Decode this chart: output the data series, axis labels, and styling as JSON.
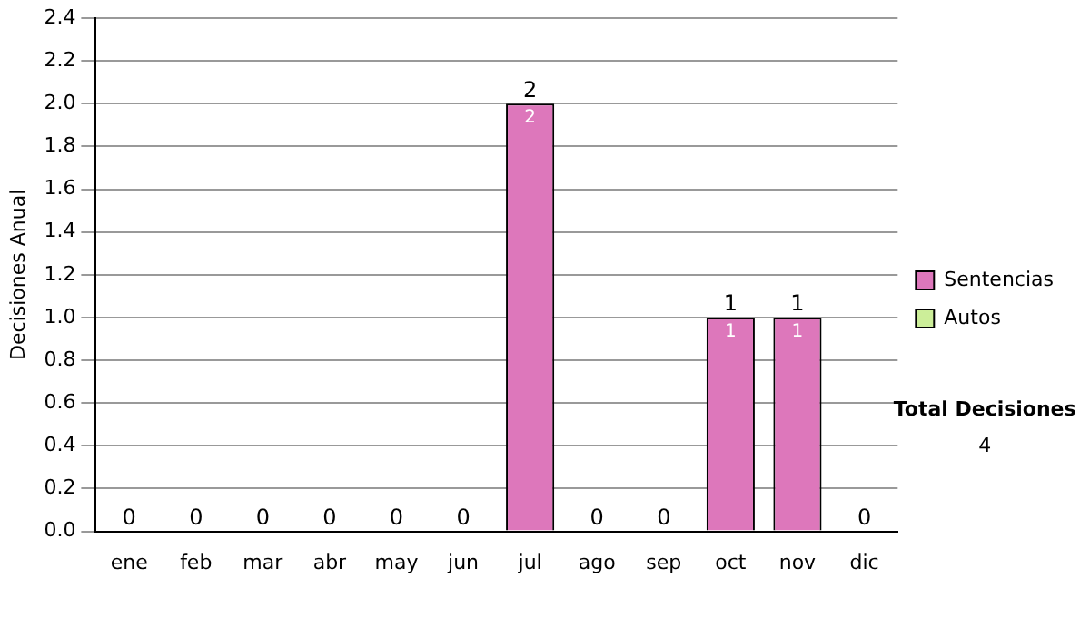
{
  "chart_data": {
    "type": "bar",
    "stacked": true,
    "ylabel": "Decisiones Anual",
    "categories": [
      "ene",
      "feb",
      "mar",
      "abr",
      "may",
      "jun",
      "jul",
      "ago",
      "sep",
      "oct",
      "nov",
      "dic"
    ],
    "series": [
      {
        "name": "Sentencias",
        "color": "#dd77bb",
        "values": [
          0,
          0,
          0,
          0,
          0,
          0,
          2,
          0,
          0,
          1,
          1,
          0
        ],
        "value_labels": [
          null,
          null,
          null,
          null,
          null,
          null,
          "2",
          null,
          null,
          "1",
          "1",
          null
        ]
      },
      {
        "name": "Autos",
        "color": "#ccee99",
        "values": [
          0,
          0,
          0,
          0,
          0,
          0,
          0,
          0,
          0,
          0,
          0,
          0
        ]
      }
    ],
    "ylim": [
      0,
      2.4
    ],
    "yticks": [
      {
        "value": 0,
        "label": "0.0"
      },
      0.2,
      0.4,
      0.6,
      0.8,
      {
        "value": 1,
        "label": "1.0"
      },
      1.2,
      1.4,
      1.6,
      1.8,
      {
        "value": 2,
        "label": "2.0"
      },
      2.2,
      2.4
    ],
    "grid": "y",
    "legend": "right",
    "totals": [
      "0",
      "0",
      "0",
      "0",
      "0",
      "0",
      "2",
      "0",
      "0",
      "1",
      "1",
      "0"
    ],
    "annotations": [
      "Total Decisiones",
      "4"
    ]
  }
}
